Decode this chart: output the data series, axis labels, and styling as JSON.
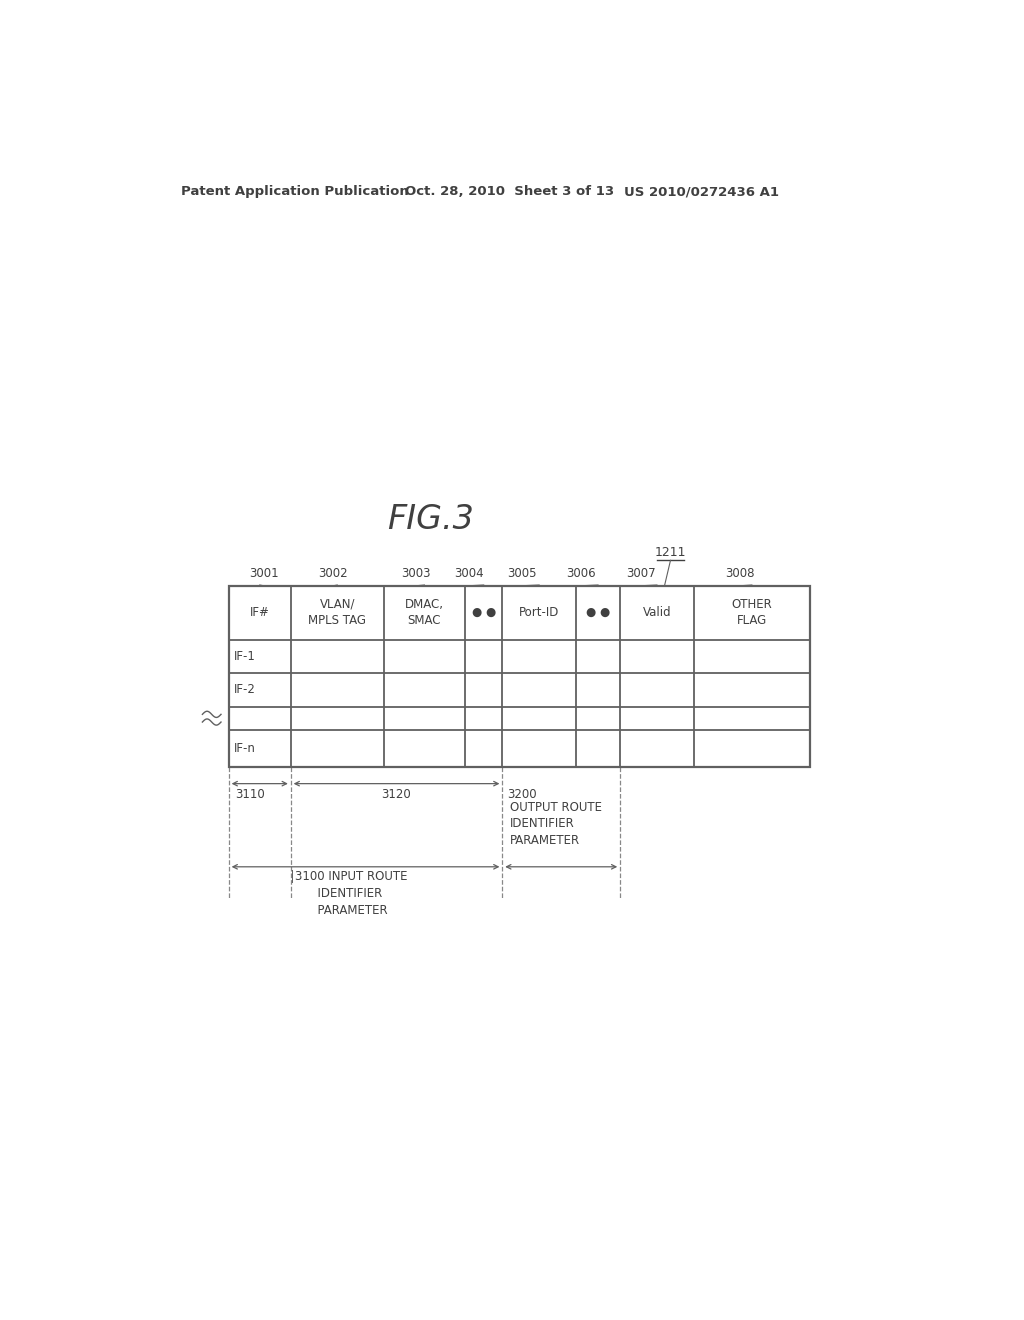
{
  "patent_left": "Patent Application Publication",
  "patent_mid": "Oct. 28, 2010  Sheet 3 of 13",
  "patent_right": "US 2010/0272436 A1",
  "title": "FIG.3",
  "label_1211": "1211",
  "col_labels": [
    "3001",
    "3002",
    "3003",
    "3004",
    "3005",
    "3006",
    "3007",
    "3008"
  ],
  "col_headers": [
    "IF#",
    "VLAN/\nMPLS TAG",
    "DMAC,\nSMAC",
    "● ●",
    "Port-ID",
    "● ●",
    "Valid",
    "OTHER\nFLAG"
  ],
  "row_labels": [
    "IF-1",
    "IF-2",
    "",
    "IF-n"
  ],
  "lbl_3110": "3110",
  "lbl_3120": "3120",
  "lbl_3100": "3100 INPUT ROUTE\n      IDENTIFIER\n      PARAMETER",
  "lbl_3200": "3200",
  "lbl_output_route": "OUTPUT ROUTE\nIDENTIFIER\nPARAMETER",
  "bg_color": "#ffffff",
  "text_color": "#404040",
  "line_color": "#606060",
  "table_lw": 1.3
}
